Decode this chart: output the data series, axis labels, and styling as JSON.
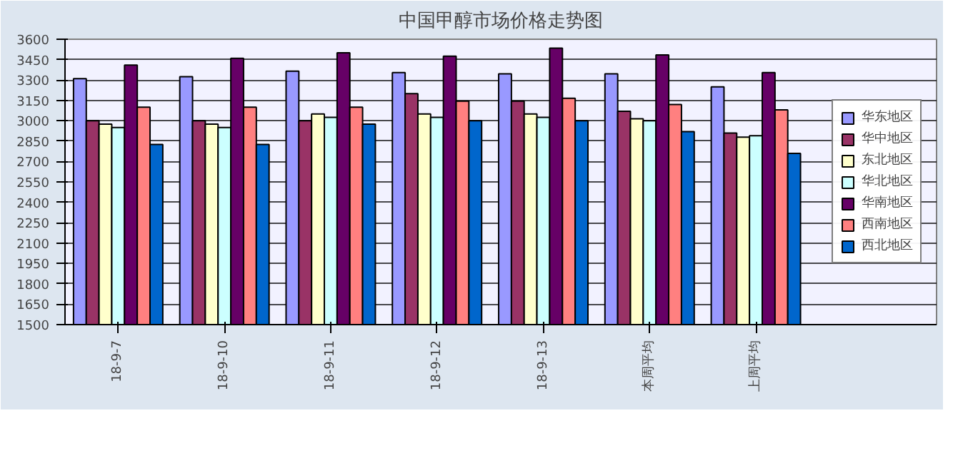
{
  "chart_data": {
    "type": "bar",
    "title": "中国甲醇市场价格走势图",
    "categories": [
      "18-9-7",
      "18-9-10",
      "18-9-11",
      "18-9-12",
      "18-9-13",
      "本周平均",
      "上周平均"
    ],
    "series": [
      {
        "name": "华东地区",
        "color": "#9999ff",
        "values": [
          3310,
          3325,
          3365,
          3355,
          3345,
          3345,
          3250
        ]
      },
      {
        "name": "华中地区",
        "color": "#993366",
        "values": [
          3000,
          3000,
          3000,
          3200,
          3145,
          3070,
          2910
        ]
      },
      {
        "name": "东北地区",
        "color": "#ffffcc",
        "values": [
          2975,
          2975,
          3050,
          3050,
          3050,
          3015,
          2880
        ]
      },
      {
        "name": "华北地区",
        "color": "#ccffff",
        "values": [
          2950,
          2950,
          3025,
          3025,
          3025,
          3000,
          2890
        ]
      },
      {
        "name": "华南地区",
        "color": "#660066",
        "values": [
          3410,
          3460,
          3500,
          3475,
          3535,
          3485,
          3355
        ]
      },
      {
        "name": "西南地区",
        "color": "#ff8080",
        "values": [
          3100,
          3100,
          3100,
          3145,
          3165,
          3120,
          3080
        ]
      },
      {
        "name": "西北地区",
        "color": "#0066cc",
        "values": [
          2825,
          2825,
          2975,
          3000,
          3000,
          2920,
          2760
        ]
      }
    ],
    "ylim": [
      1500,
      3600
    ],
    "yticks": [
      1500,
      1650,
      1800,
      1950,
      2100,
      2250,
      2400,
      2550,
      2700,
      2850,
      3000,
      3150,
      3300,
      3450,
      3600
    ],
    "grid": "y",
    "legend": "right"
  }
}
